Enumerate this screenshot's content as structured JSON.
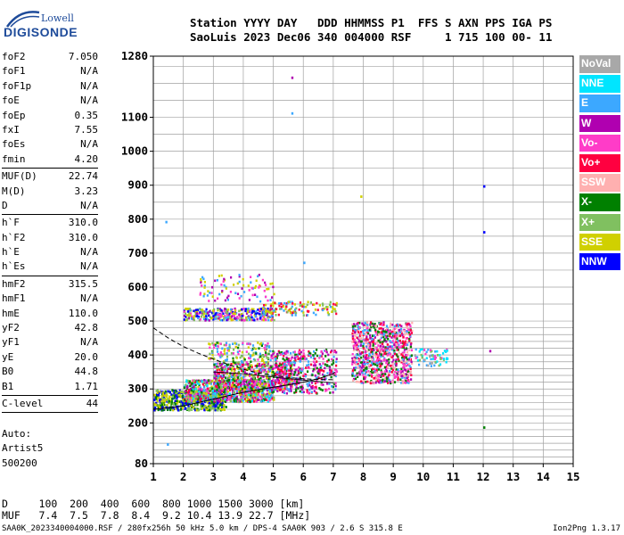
{
  "logo": {
    "top": "Lowell",
    "bottom": "DIGISONDE"
  },
  "header": {
    "line1": "Station YYYY DAY   DDD HHMMSS P1  FFS S AXN PPS IGA PS",
    "line2": "SaoLuis 2023 Dec06 340 004000 RSF     1 715 100 00- 11"
  },
  "params": {
    "group1": [
      {
        "label": "foF2",
        "value": "7.050"
      },
      {
        "label": "foF1",
        "value": "N/A"
      },
      {
        "label": "foF1p",
        "value": "N/A"
      },
      {
        "label": "foE",
        "value": "N/A"
      },
      {
        "label": "foEp",
        "value": "0.35"
      },
      {
        "label": "fxI",
        "value": "7.55"
      },
      {
        "label": "foEs",
        "value": "N/A"
      },
      {
        "label": "fmin",
        "value": "4.20"
      }
    ],
    "group2": [
      {
        "label": "MUF(D)",
        "value": "22.74"
      },
      {
        "label": "M(D)",
        "value": "3.23"
      },
      {
        "label": "D",
        "value": "N/A"
      }
    ],
    "group3": [
      {
        "label": "h`F",
        "value": "310.0"
      },
      {
        "label": "h`F2",
        "value": "310.0"
      },
      {
        "label": "h`E",
        "value": "N/A"
      },
      {
        "label": "h`Es",
        "value": "N/A"
      }
    ],
    "group4": [
      {
        "label": "hmF2",
        "value": "315.5"
      },
      {
        "label": "hmF1",
        "value": "N/A"
      },
      {
        "label": "hmE",
        "value": "110.0"
      },
      {
        "label": "yF2",
        "value": "42.8"
      },
      {
        "label": "yF1",
        "value": "N/A"
      },
      {
        "label": "yE",
        "value": "20.0"
      },
      {
        "label": "B0",
        "value": "44.8"
      },
      {
        "label": "B1",
        "value": "1.71"
      }
    ],
    "group5": [
      {
        "label": "C-level",
        "value": "44"
      }
    ]
  },
  "auto": {
    "line1": "Auto:",
    "line2": "Artist5",
    "line3": "500200"
  },
  "legend": [
    {
      "label": "NoVal",
      "color": "#a8a8a8"
    },
    {
      "label": "NNE",
      "color": "#00e5ff"
    },
    {
      "label": "E",
      "color": "#3ca8ff"
    },
    {
      "label": "W",
      "color": "#b000b0"
    },
    {
      "label": "Vo-",
      "color": "#ff3cc8"
    },
    {
      "label": "Vo+",
      "color": "#ff0040"
    },
    {
      "label": "SSW",
      "color": "#ffb0b0"
    },
    {
      "label": "X-",
      "color": "#008000"
    },
    {
      "label": "X+",
      "color": "#80c060"
    },
    {
      "label": "SSE",
      "color": "#d0d000"
    },
    {
      "label": "NNW",
      "color": "#0000ff"
    }
  ],
  "footer": {
    "line1": "D     100  200  400  600  800 1000 1500 3000 [km]",
    "line2": "MUF   7.4  7.5  7.8  8.4  9.2 10.4 13.9 22.7 [MHz]",
    "line3": "SAA0K_2023340004000.RSF / 280fx256h 50 kHz 5.0 km / DPS-4 SAA0K 903 / 2.6 S 315.8 E",
    "version": "Ion2Png 1.3.17"
  },
  "chart_data": {
    "type": "scatter",
    "xlim": [
      1,
      15
    ],
    "ylim": [
      80,
      1280
    ],
    "xticks": [
      "1",
      "2",
      "3",
      "4",
      "5",
      "6",
      "7",
      "8",
      "9",
      "10",
      "11",
      "12",
      "13",
      "14",
      "15"
    ],
    "yticks": [
      {
        "value": 80,
        "label": "80"
      },
      {
        "value": 200,
        "label": "200"
      },
      {
        "value": 300,
        "label": "300"
      },
      {
        "value": 400,
        "label": "400"
      },
      {
        "value": 500,
        "label": "500"
      },
      {
        "value": 600,
        "label": "600"
      },
      {
        "value": 700,
        "label": "700"
      },
      {
        "value": 800,
        "label": "800"
      },
      {
        "value": 900,
        "label": "900"
      },
      {
        "value": 1000,
        "label": "1000"
      },
      {
        "value": 1100,
        "label": "1100"
      },
      {
        "value": 1280,
        "label": "1280"
      }
    ],
    "ygrid": [
      80,
      100,
      120,
      140,
      160,
      180,
      200,
      220,
      240,
      260,
      280,
      300,
      320,
      340,
      360,
      380,
      400,
      420,
      440,
      460,
      480,
      500,
      550,
      600,
      650,
      700,
      750,
      800,
      850,
      900,
      950,
      1000,
      1050,
      1100,
      1150,
      1200,
      1250,
      1280
    ],
    "grid": true,
    "clusters": [
      {
        "x": [
          1.0,
          3.4
        ],
        "y": [
          240,
          300
        ],
        "n": 600,
        "colors": [
          "#0000ff",
          "#d0d000",
          "#80c060",
          "#008000"
        ]
      },
      {
        "x": [
          2.0,
          5.0
        ],
        "y": [
          265,
          330
        ],
        "n": 750,
        "colors": [
          "#d0d000",
          "#80c060",
          "#008000",
          "#ff0040",
          "#ff3cc8",
          "#3ca8ff",
          "#00e5ff",
          "#b000b0"
        ]
      },
      {
        "x": [
          3.0,
          5.6
        ],
        "y": [
          300,
          380
        ],
        "n": 550,
        "colors": [
          "#ff0040",
          "#ff3cc8",
          "#b000b0",
          "#3ca8ff",
          "#008000",
          "#80c060",
          "#d0d000"
        ]
      },
      {
        "x": [
          2.8,
          4.9
        ],
        "y": [
          380,
          440
        ],
        "n": 160,
        "colors": [
          "#d0d000",
          "#80c060",
          "#008000",
          "#ff3cc8",
          "#3ca8ff"
        ]
      },
      {
        "x": [
          4.9,
          7.1
        ],
        "y": [
          290,
          420
        ],
        "n": 420,
        "colors": [
          "#ff0040",
          "#ff3cc8",
          "#b000b0",
          "#008000",
          "#3ca8ff"
        ]
      },
      {
        "x": [
          2.0,
          5.0
        ],
        "y": [
          505,
          540
        ],
        "n": 320,
        "colors": [
          "#3ca8ff",
          "#d0d000",
          "#ff3cc8",
          "#b000b0",
          "#0000ff",
          "#80c060"
        ]
      },
      {
        "x": [
          4.6,
          7.1
        ],
        "y": [
          520,
          560
        ],
        "n": 130,
        "colors": [
          "#d0d000",
          "#80c060",
          "#3ca8ff",
          "#ff0040"
        ]
      },
      {
        "x": [
          2.5,
          5.0
        ],
        "y": [
          560,
          640
        ],
        "n": 90,
        "colors": [
          "#ff3cc8",
          "#b000b0",
          "#3ca8ff",
          "#d0d000"
        ]
      },
      {
        "x": [
          7.6,
          9.6
        ],
        "y": [
          320,
          500
        ],
        "n": 900,
        "colors": [
          "#ff0040",
          "#ff3cc8",
          "#b000b0",
          "#3ca8ff",
          "#ffb0b0",
          "#008000"
        ]
      },
      {
        "x": [
          9.7,
          10.8
        ],
        "y": [
          370,
          420
        ],
        "n": 70,
        "colors": [
          "#3ca8ff",
          "#00e5ff",
          "#ff3cc8",
          "#80c060",
          "#a8a8a8"
        ]
      }
    ],
    "points": [
      {
        "x": 1.4,
        "y": 795,
        "color": "#3ca8ff"
      },
      {
        "x": 5.6,
        "y": 1220,
        "color": "#b000b0"
      },
      {
        "x": 5.6,
        "y": 1115,
        "color": "#3ca8ff"
      },
      {
        "x": 12.0,
        "y": 900,
        "color": "#0000ff"
      },
      {
        "x": 12.0,
        "y": 765,
        "color": "#0000ff"
      },
      {
        "x": 12.0,
        "y": 190,
        "color": "#008000"
      },
      {
        "x": 12.2,
        "y": 415,
        "color": "#b000b0"
      },
      {
        "x": 7.9,
        "y": 870,
        "color": "#d0d000"
      },
      {
        "x": 1.45,
        "y": 140,
        "color": "#3ca8ff"
      },
      {
        "x": 6.0,
        "y": 675,
        "color": "#3ca8ff"
      }
    ],
    "profile_dashed": {
      "x": [
        1.0,
        1.5,
        2.0,
        2.5,
        3.0,
        3.5,
        4.0,
        4.5,
        5.0,
        5.5,
        6.0,
        6.5,
        7.0
      ],
      "y": [
        480,
        450,
        425,
        405,
        388,
        372,
        358,
        347,
        340,
        334,
        330,
        328,
        327
      ]
    },
    "trace_solid": {
      "x": [
        1.0,
        2.0,
        3.0,
        4.0,
        5.0,
        5.5,
        6.0,
        6.5,
        7.0,
        7.05
      ],
      "y": [
        240,
        250,
        270,
        290,
        305,
        312,
        320,
        330,
        345,
        350
      ]
    },
    "trace_solid2": {
      "x": [
        3.0,
        4.0,
        5.0,
        6.0,
        7.0
      ],
      "y": [
        350,
        345,
        335,
        326,
        318
      ]
    }
  }
}
